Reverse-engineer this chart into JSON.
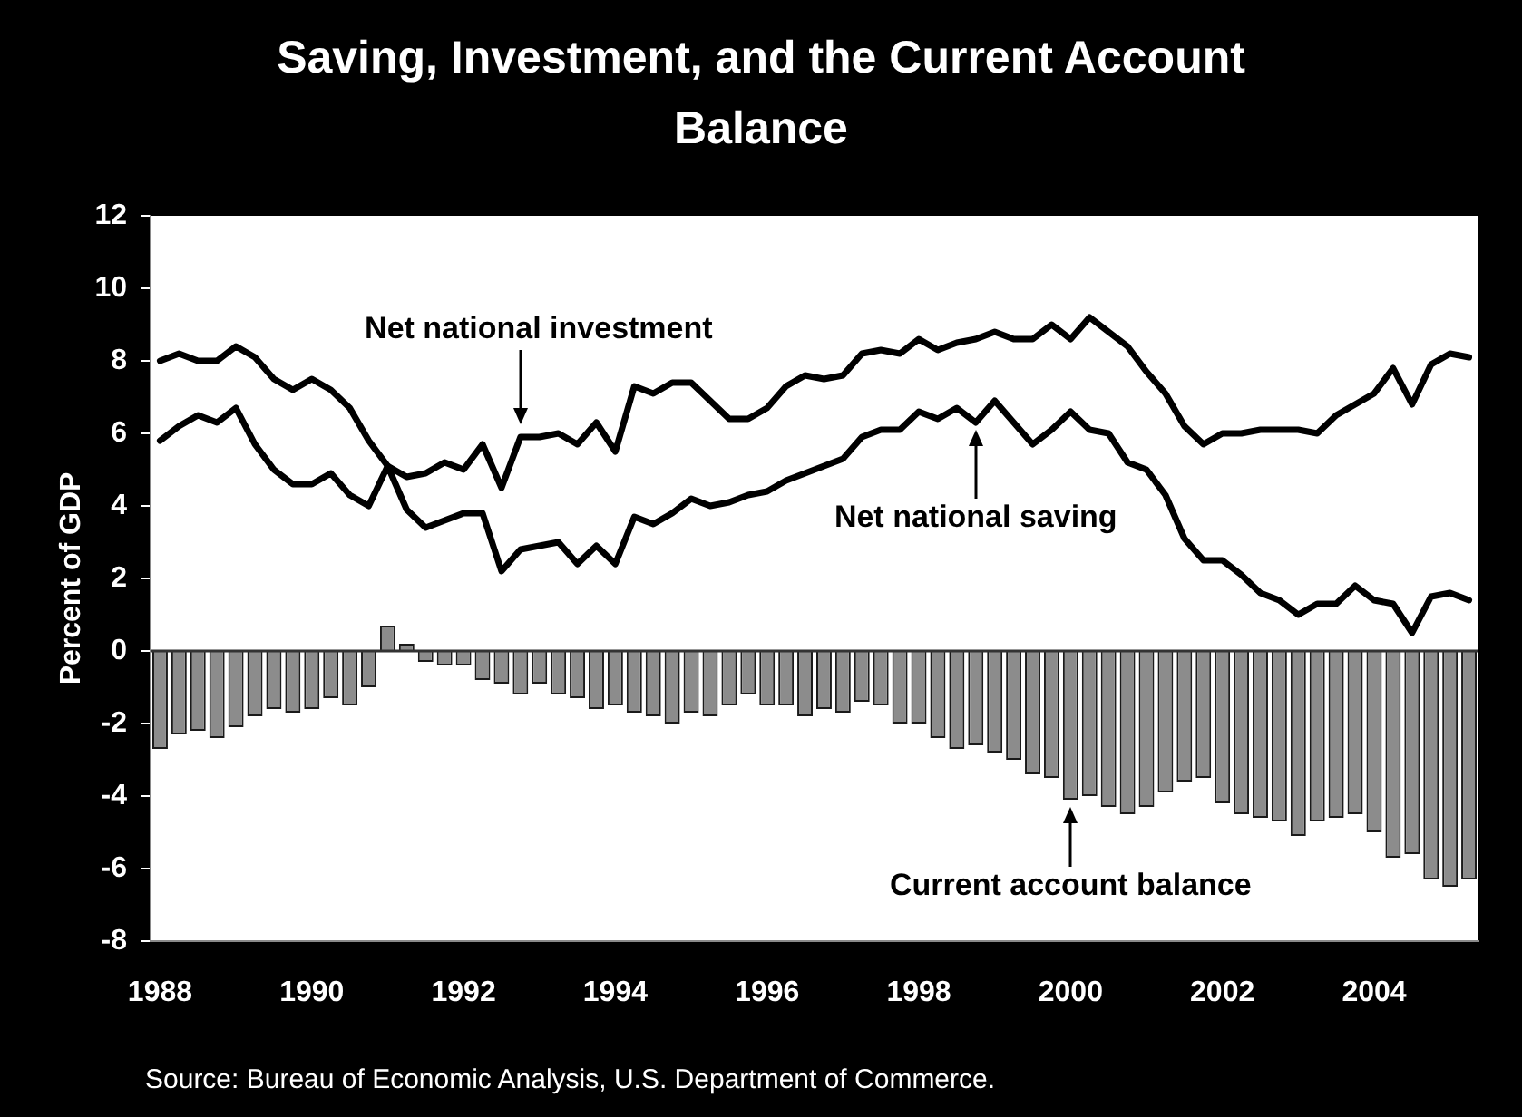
{
  "chart_data": {
    "type": "line",
    "title": "Saving, Investment, and the Current Account Balance",
    "ylabel": "Percent of GDP",
    "annotations": [
      {
        "text": "Net national investment",
        "x": 1992.75,
        "y": 5.9
      },
      {
        "text": "Net national saving",
        "x": 1998.75,
        "y": 6.3
      },
      {
        "text": "Current account balance",
        "x": 2000,
        "y": -4.1
      },
      "Source: Bureau of Economic Analysis, U.S. Department of Commerce."
    ],
    "x": [
      1988,
      1988.25,
      1988.5,
      1988.75,
      1989,
      1989.25,
      1989.5,
      1989.75,
      1990,
      1990.25,
      1990.5,
      1990.75,
      1991,
      1991.25,
      1991.5,
      1991.75,
      1992,
      1992.25,
      1992.5,
      1992.75,
      1993,
      1993.25,
      1993.5,
      1993.75,
      1994,
      1994.25,
      1994.5,
      1994.75,
      1995,
      1995.25,
      1995.5,
      1995.75,
      1996,
      1996.25,
      1996.5,
      1996.75,
      1997,
      1997.25,
      1997.5,
      1997.75,
      1998,
      1998.25,
      1998.5,
      1998.75,
      1999,
      1999.25,
      1999.5,
      1999.75,
      2000,
      2000.25,
      2000.5,
      2000.75,
      2001,
      2001.25,
      2001.5,
      2001.75,
      2002,
      2002.25,
      2002.5,
      2002.75,
      2003,
      2003.25,
      2003.5,
      2003.75,
      2004,
      2004.25,
      2004.5,
      2004.75,
      2005,
      2005.25
    ],
    "xlim": [
      1987.875,
      2005.375
    ],
    "xticks": [
      1988,
      1990,
      1992,
      1994,
      1996,
      1998,
      2000,
      2002,
      2004
    ],
    "ylim": [
      -8,
      12
    ],
    "yticks": [
      -8,
      -6,
      -4,
      -2,
      0,
      2,
      4,
      6,
      8,
      10,
      12
    ],
    "series": [
      {
        "color": "#000000",
        "values": [
          8,
          8.2,
          8,
          8,
          8.4,
          8.1,
          7.5,
          7.2,
          7.5,
          7.2,
          6.7,
          5.8,
          5.1,
          4.8,
          4.9,
          5.2,
          5,
          5.7,
          4.5,
          5.9,
          5.9,
          6,
          5.7,
          6.3,
          5.5,
          7.3,
          7.1,
          7.4,
          7.4,
          6.9,
          6.4,
          6.4,
          6.7,
          7.3,
          7.6,
          7.5,
          7.6,
          8.2,
          8.3,
          8.2,
          8.6,
          8.3,
          8.5,
          8.6,
          8.8,
          8.6,
          8.6,
          9,
          8.6,
          9.2,
          8.8,
          8.4,
          7.7,
          7.1,
          6.2,
          5.7,
          6,
          6,
          6.1,
          6.1,
          6.1,
          6,
          6.5,
          6.8,
          7.1,
          7.8,
          6.8,
          7.9,
          8.2,
          8.1
        ]
      },
      {
        "color": "#000000",
        "values": [
          5.8,
          6.2,
          6.5,
          6.3,
          6.7,
          5.7,
          5,
          4.6,
          4.6,
          4.9,
          4.3,
          4,
          5.1,
          3.9,
          3.4,
          3.6,
          3.8,
          3.8,
          2.2,
          2.8,
          2.9,
          3,
          2.4,
          2.9,
          2.4,
          3.7,
          3.5,
          3.8,
          4.2,
          4,
          4.1,
          4.3,
          4.4,
          4.7,
          4.9,
          5.1,
          5.3,
          5.9,
          6.1,
          6.1,
          6.6,
          6.4,
          6.7,
          6.3,
          6.9,
          6.3,
          5.7,
          6.1,
          6.6,
          6.1,
          6,
          5.2,
          5,
          4.3,
          3.1,
          2.5,
          2.5,
          2.1,
          1.6,
          1.4,
          1,
          1.3,
          1.3,
          1.8,
          1.4,
          1.3,
          0.5,
          1.5,
          1.6,
          1.4
        ]
      },
      {
        "type": "bar",
        "color": "#8c8c8c",
        "values": [
          -2.7,
          -2.3,
          -2.2,
          -2.4,
          -2.1,
          -1.8,
          -1.6,
          -1.7,
          -1.6,
          -1.3,
          -1.5,
          -1,
          0.7,
          0.2,
          -0.3,
          -0.4,
          -0.4,
          -0.8,
          -0.9,
          -1.2,
          -0.9,
          -1.2,
          -1.3,
          -1.6,
          -1.5,
          -1.7,
          -1.8,
          -2,
          -1.7,
          -1.8,
          -1.5,
          -1.2,
          -1.5,
          -1.5,
          -1.8,
          -1.6,
          -1.7,
          -1.4,
          -1.5,
          -2,
          -2,
          -2.4,
          -2.7,
          -2.6,
          -2.8,
          -3,
          -3.4,
          -3.5,
          -4.1,
          -4,
          -4.3,
          -4.5,
          -4.3,
          -3.9,
          -3.6,
          -3.5,
          -4.2,
          -4.5,
          -4.6,
          -4.7,
          -5.1,
          -4.7,
          -4.6,
          -4.5,
          -5,
          -5.7,
          -5.6,
          -6.3,
          -6.5,
          -6.3
        ]
      }
    ],
    "ref_lines": [
      {
        "axis": "y",
        "value": 0,
        "color": "#333333"
      }
    ]
  }
}
